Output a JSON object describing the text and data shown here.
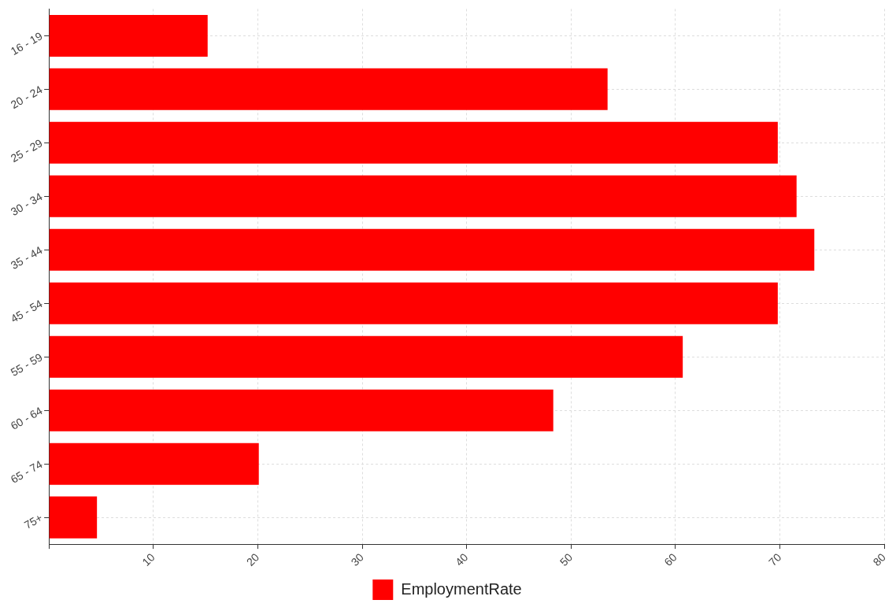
{
  "chart_data": {
    "type": "bar",
    "orientation": "horizontal",
    "categories": [
      "16 - 19",
      "20 - 24",
      "25 - 29",
      "30 - 34",
      "35 - 44",
      "45 - 54",
      "55 - 59",
      "60 - 64",
      "65 - 74",
      "75+"
    ],
    "series": [
      {
        "name": "EmploymentRate",
        "color": "#ff0000",
        "values": [
          15.2,
          53.5,
          69.8,
          71.6,
          73.3,
          69.8,
          60.7,
          48.3,
          20.1,
          4.6
        ]
      }
    ],
    "xlim": [
      0,
      80
    ],
    "xticks": [
      {
        "value": 0,
        "label": null
      },
      10,
      20,
      30,
      40,
      50,
      60,
      70,
      80
    ],
    "grid": true,
    "legend": "bottom"
  }
}
